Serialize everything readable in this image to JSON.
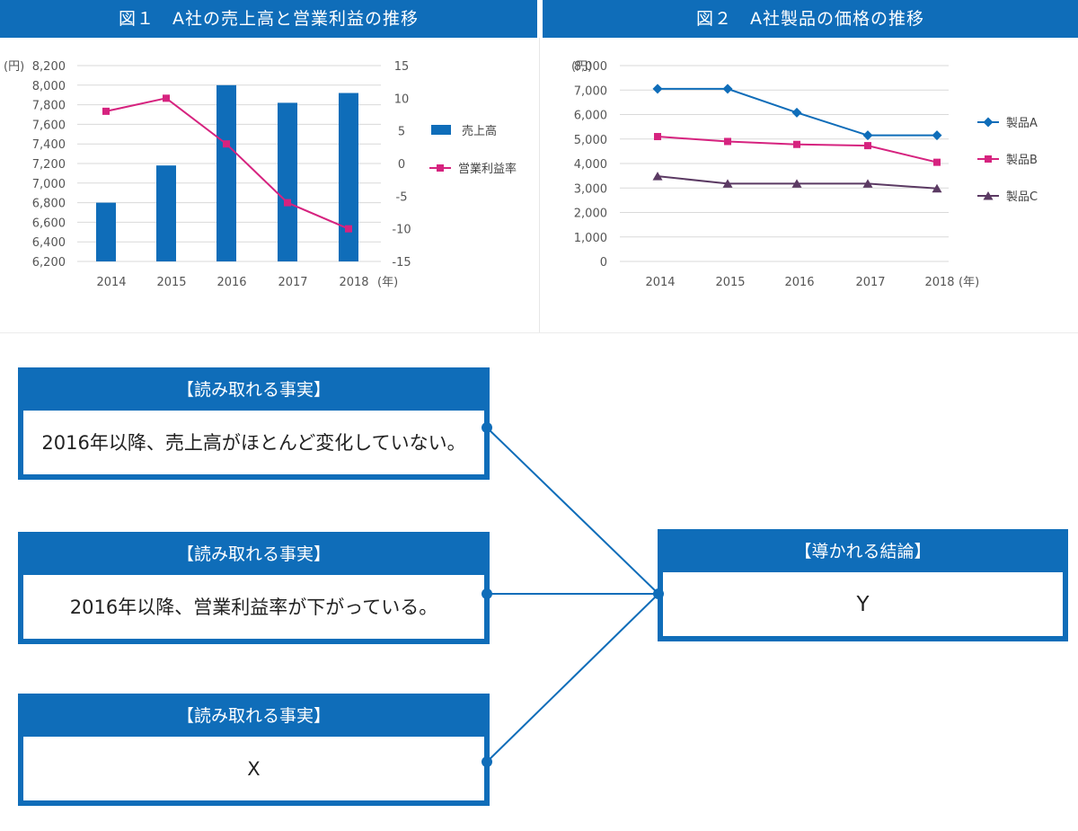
{
  "figure1": {
    "title": "図１　A社の売上高と営業利益の推移",
    "unit_left": "(円)",
    "x_unit": "(年)"
  },
  "figure2": {
    "title": "図２　A社製品の価格の推移",
    "unit_left": "(円)",
    "x_unit": "(年)"
  },
  "chart_data": [
    {
      "type": "bar+line",
      "title": "図１　A社の売上高と営業利益の推移",
      "categories": [
        "2014",
        "2015",
        "2016",
        "2017",
        "2018"
      ],
      "y_left": {
        "min": 6200,
        "max": 8200,
        "step": 200,
        "ticks": [
          "8,200",
          "8,000",
          "7,800",
          "7,600",
          "7,400",
          "7,200",
          "7,000",
          "6,800",
          "6,600",
          "6,400",
          "6,200"
        ]
      },
      "y_right": {
        "min": -15,
        "max": 15,
        "step": 5,
        "ticks": [
          "15",
          "10",
          "5",
          "0",
          "-5",
          "-10",
          "-15"
        ]
      },
      "series": [
        {
          "name": "売上高",
          "kind": "bar",
          "axis": "left",
          "color": "#0f6db9",
          "values": [
            6800,
            7180,
            8000,
            7820,
            7920
          ]
        },
        {
          "name": "営業利益率",
          "kind": "line",
          "axis": "right",
          "color": "#d6237f",
          "values": [
            8,
            10,
            3,
            -6,
            -10
          ]
        }
      ],
      "legend": "right",
      "grid": true
    },
    {
      "type": "line",
      "title": "図２　A社製品の価格の推移",
      "categories": [
        "2014",
        "2015",
        "2016",
        "2017",
        "2018"
      ],
      "y": {
        "min": 0,
        "max": 8000,
        "step": 1000,
        "ticks": [
          "8,000",
          "7,000",
          "6,000",
          "5,000",
          "4,000",
          "3,000",
          "2,000",
          "1,000",
          "0"
        ]
      },
      "series": [
        {
          "name": "製品A",
          "marker": "diamond",
          "color": "#0f6db9",
          "values": [
            7050,
            7050,
            6080,
            5150,
            5150
          ]
        },
        {
          "name": "製品B",
          "marker": "square",
          "color": "#d6237f",
          "values": [
            5100,
            4900,
            4780,
            4730,
            4050
          ]
        },
        {
          "name": "製品C",
          "marker": "triangle",
          "color": "#5b3a63",
          "values": [
            3480,
            3180,
            3180,
            3180,
            2980
          ]
        }
      ],
      "legend": "right",
      "grid": true
    }
  ],
  "facts": [
    {
      "header": "【読み取れる事実】",
      "text": "2016年以降、売上高がほとんど変化していない。"
    },
    {
      "header": "【読み取れる事実】",
      "text": "2016年以降、営業利益率が下がっている。"
    },
    {
      "header": "【読み取れる事実】",
      "text": "X"
    }
  ],
  "conclusion": {
    "header": "【導かれる結論】",
    "text": "Y"
  },
  "colors": {
    "accent": "#0f6db9",
    "magenta": "#d6237f",
    "purple": "#5b3a63",
    "grid": "#d9d9d9"
  }
}
